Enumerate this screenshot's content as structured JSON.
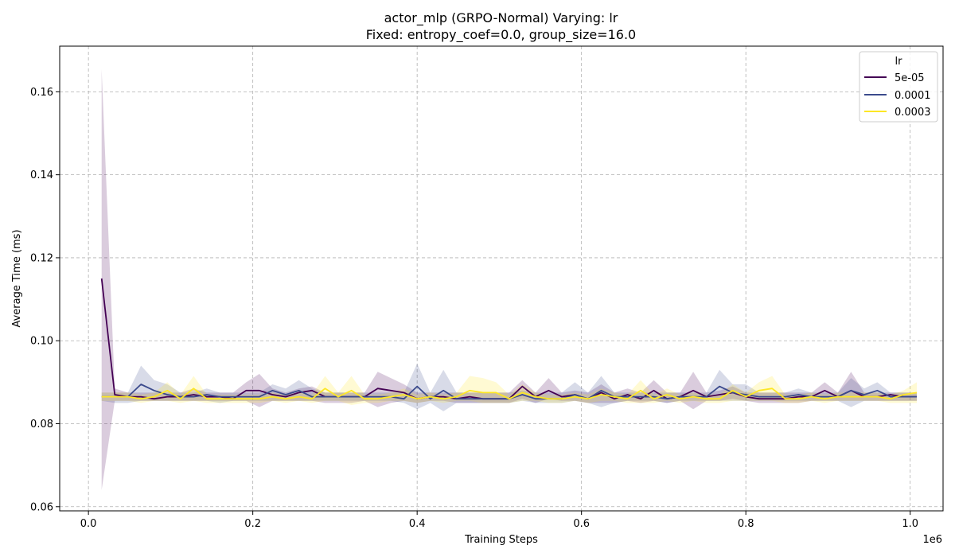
{
  "chart_data": {
    "type": "line",
    "title_line1": "actor_mlp (GRPO-Normal) Varying: lr",
    "title_line2": "Fixed: entropy_coef=0.0, group_size=16.0",
    "xlabel": "Training Steps",
    "ylabel": "Average Time (ms)",
    "x_offset_label": "1e6",
    "xlim": [
      -0.035,
      1.04
    ],
    "ylim": [
      0.059,
      0.171
    ],
    "x_ticks": [
      0.0,
      0.2,
      0.4,
      0.6,
      0.8,
      1.0
    ],
    "x_tick_labels": [
      "0.0",
      "0.2",
      "0.4",
      "0.6",
      "0.8",
      "1.0"
    ],
    "y_ticks": [
      0.06,
      0.08,
      0.1,
      0.12,
      0.14,
      0.16
    ],
    "y_tick_labels": [
      "0.06",
      "0.08",
      "0.10",
      "0.12",
      "0.14",
      "0.16"
    ],
    "grid": true,
    "legend": {
      "title": "lr",
      "placement": "top-right"
    },
    "x": [
      0.016,
      0.032,
      0.048,
      0.064,
      0.08,
      0.096,
      0.112,
      0.128,
      0.144,
      0.16,
      0.176,
      0.192,
      0.208,
      0.224,
      0.24,
      0.256,
      0.272,
      0.288,
      0.304,
      0.32,
      0.336,
      0.352,
      0.368,
      0.384,
      0.4,
      0.416,
      0.432,
      0.448,
      0.464,
      0.48,
      0.496,
      0.512,
      0.528,
      0.544,
      0.56,
      0.576,
      0.592,
      0.608,
      0.624,
      0.64,
      0.656,
      0.672,
      0.688,
      0.704,
      0.72,
      0.736,
      0.752,
      0.768,
      0.784,
      0.8,
      0.816,
      0.832,
      0.848,
      0.864,
      0.88,
      0.896,
      0.912,
      0.928,
      0.944,
      0.96,
      0.976,
      0.992,
      1.008
    ],
    "series": [
      {
        "name": "5e-05",
        "color": "#440154",
        "values": [
          0.115,
          0.087,
          0.0865,
          0.0865,
          0.086,
          0.0865,
          0.0865,
          0.087,
          0.0865,
          0.0865,
          0.086,
          0.088,
          0.088,
          0.087,
          0.0865,
          0.0875,
          0.088,
          0.0865,
          0.0865,
          0.0865,
          0.0865,
          0.0885,
          0.088,
          0.0875,
          0.086,
          0.0865,
          0.0865,
          0.086,
          0.0865,
          0.086,
          0.086,
          0.086,
          0.089,
          0.0865,
          0.088,
          0.0865,
          0.087,
          0.086,
          0.0875,
          0.086,
          0.087,
          0.086,
          0.088,
          0.086,
          0.0865,
          0.088,
          0.0865,
          0.087,
          0.0875,
          0.0865,
          0.086,
          0.086,
          0.086,
          0.0865,
          0.0865,
          0.088,
          0.0865,
          0.088,
          0.0865,
          0.0865,
          0.087,
          0.0865,
          0.0865
        ],
        "lower": [
          0.064,
          0.0855,
          0.0855,
          0.0855,
          0.0855,
          0.0855,
          0.0855,
          0.0855,
          0.0855,
          0.0855,
          0.0855,
          0.0855,
          0.084,
          0.0855,
          0.0855,
          0.0855,
          0.0855,
          0.085,
          0.085,
          0.085,
          0.0855,
          0.084,
          0.085,
          0.0855,
          0.085,
          0.0855,
          0.0855,
          0.085,
          0.085,
          0.085,
          0.085,
          0.085,
          0.086,
          0.085,
          0.086,
          0.0855,
          0.0855,
          0.085,
          0.085,
          0.085,
          0.0855,
          0.085,
          0.0855,
          0.085,
          0.0855,
          0.0835,
          0.0855,
          0.0855,
          0.086,
          0.0855,
          0.085,
          0.085,
          0.085,
          0.085,
          0.0855,
          0.0855,
          0.0855,
          0.0855,
          0.0855,
          0.0855,
          0.0855,
          0.0855,
          0.0855
        ],
        "upper": [
          0.1655,
          0.0885,
          0.0875,
          0.0875,
          0.0875,
          0.0875,
          0.0875,
          0.0885,
          0.0875,
          0.0875,
          0.0875,
          0.09,
          0.092,
          0.0885,
          0.0875,
          0.0885,
          0.089,
          0.0875,
          0.0875,
          0.0875,
          0.0875,
          0.0925,
          0.091,
          0.0895,
          0.0875,
          0.0875,
          0.0875,
          0.0875,
          0.0875,
          0.0875,
          0.0875,
          0.0875,
          0.0905,
          0.0875,
          0.091,
          0.0875,
          0.088,
          0.0875,
          0.0895,
          0.0875,
          0.0885,
          0.0875,
          0.0905,
          0.0875,
          0.0875,
          0.0925,
          0.0875,
          0.088,
          0.089,
          0.0875,
          0.0875,
          0.0875,
          0.0875,
          0.0875,
          0.0875,
          0.09,
          0.0875,
          0.0925,
          0.0875,
          0.0875,
          0.0875,
          0.0875,
          0.0875
        ]
      },
      {
        "name": "0.0001",
        "color": "#3b4a8c",
        "values": [
          0.0865,
          0.0865,
          0.0865,
          0.0895,
          0.088,
          0.087,
          0.0865,
          0.0865,
          0.087,
          0.0865,
          0.0865,
          0.0865,
          0.0865,
          0.088,
          0.087,
          0.088,
          0.0865,
          0.0865,
          0.0865,
          0.0865,
          0.0865,
          0.0865,
          0.0865,
          0.086,
          0.089,
          0.086,
          0.088,
          0.086,
          0.086,
          0.086,
          0.086,
          0.086,
          0.087,
          0.086,
          0.086,
          0.086,
          0.087,
          0.086,
          0.088,
          0.0865,
          0.0865,
          0.0865,
          0.0865,
          0.086,
          0.0865,
          0.0865,
          0.0865,
          0.089,
          0.0875,
          0.087,
          0.0865,
          0.0865,
          0.0865,
          0.087,
          0.0865,
          0.0865,
          0.0865,
          0.088,
          0.087,
          0.088,
          0.0865,
          0.0865,
          0.0865
        ],
        "lower": [
          0.0855,
          0.085,
          0.085,
          0.0855,
          0.0855,
          0.0855,
          0.0855,
          0.0855,
          0.0855,
          0.085,
          0.0855,
          0.0855,
          0.0855,
          0.0855,
          0.0855,
          0.0855,
          0.0855,
          0.0855,
          0.0855,
          0.0855,
          0.0855,
          0.0855,
          0.0855,
          0.085,
          0.0835,
          0.085,
          0.083,
          0.085,
          0.085,
          0.085,
          0.085,
          0.085,
          0.0855,
          0.085,
          0.085,
          0.085,
          0.0855,
          0.085,
          0.084,
          0.085,
          0.0855,
          0.0855,
          0.0855,
          0.085,
          0.0855,
          0.0855,
          0.0855,
          0.0855,
          0.0855,
          0.0855,
          0.0855,
          0.0855,
          0.0855,
          0.0855,
          0.0855,
          0.0855,
          0.0855,
          0.084,
          0.0855,
          0.0855,
          0.0855,
          0.0855,
          0.0855
        ],
        "upper": [
          0.0875,
          0.0875,
          0.0875,
          0.094,
          0.0905,
          0.0895,
          0.0875,
          0.0875,
          0.0885,
          0.0875,
          0.0875,
          0.0875,
          0.0875,
          0.0895,
          0.0885,
          0.0905,
          0.0885,
          0.0875,
          0.0875,
          0.0875,
          0.0875,
          0.0875,
          0.0875,
          0.0875,
          0.0945,
          0.0875,
          0.093,
          0.0875,
          0.0875,
          0.0875,
          0.0875,
          0.0875,
          0.088,
          0.0875,
          0.0875,
          0.0875,
          0.09,
          0.0875,
          0.0915,
          0.0875,
          0.0875,
          0.0875,
          0.0875,
          0.0875,
          0.0875,
          0.0875,
          0.0875,
          0.093,
          0.0895,
          0.0895,
          0.0875,
          0.0875,
          0.0875,
          0.0885,
          0.0875,
          0.0875,
          0.0875,
          0.091,
          0.0885,
          0.09,
          0.0875,
          0.0875,
          0.0875
        ]
      },
      {
        "name": "0.0003",
        "color": "#fde725",
        "values": [
          0.0865,
          0.0865,
          0.0865,
          0.086,
          0.0865,
          0.088,
          0.086,
          0.0885,
          0.086,
          0.086,
          0.086,
          0.086,
          0.086,
          0.0865,
          0.086,
          0.0865,
          0.086,
          0.0885,
          0.0865,
          0.088,
          0.086,
          0.086,
          0.0865,
          0.087,
          0.086,
          0.0865,
          0.086,
          0.0865,
          0.088,
          0.0875,
          0.0875,
          0.086,
          0.0875,
          0.0865,
          0.086,
          0.086,
          0.0865,
          0.086,
          0.087,
          0.0865,
          0.086,
          0.088,
          0.086,
          0.087,
          0.086,
          0.0865,
          0.086,
          0.086,
          0.088,
          0.0865,
          0.088,
          0.0885,
          0.086,
          0.086,
          0.0865,
          0.086,
          0.0865,
          0.0865,
          0.0865,
          0.0865,
          0.086,
          0.087,
          0.0875
        ],
        "lower": [
          0.0855,
          0.0855,
          0.0855,
          0.085,
          0.0855,
          0.0855,
          0.085,
          0.0855,
          0.085,
          0.085,
          0.085,
          0.085,
          0.085,
          0.0855,
          0.085,
          0.0855,
          0.085,
          0.0855,
          0.0855,
          0.0845,
          0.085,
          0.085,
          0.0855,
          0.0855,
          0.085,
          0.0855,
          0.085,
          0.0855,
          0.0855,
          0.085,
          0.085,
          0.085,
          0.0855,
          0.0855,
          0.085,
          0.085,
          0.0855,
          0.085,
          0.0855,
          0.0855,
          0.085,
          0.085,
          0.085,
          0.0855,
          0.085,
          0.0855,
          0.085,
          0.085,
          0.0855,
          0.0855,
          0.0855,
          0.0855,
          0.085,
          0.085,
          0.0855,
          0.085,
          0.0855,
          0.0855,
          0.0855,
          0.0855,
          0.085,
          0.085,
          0.085
        ],
        "upper": [
          0.0875,
          0.0875,
          0.0875,
          0.087,
          0.0875,
          0.09,
          0.087,
          0.0915,
          0.087,
          0.087,
          0.087,
          0.087,
          0.087,
          0.0875,
          0.087,
          0.0875,
          0.087,
          0.0915,
          0.0875,
          0.0915,
          0.087,
          0.087,
          0.0875,
          0.0885,
          0.087,
          0.0875,
          0.087,
          0.0875,
          0.0915,
          0.091,
          0.09,
          0.087,
          0.0895,
          0.0875,
          0.087,
          0.087,
          0.0875,
          0.087,
          0.0885,
          0.0875,
          0.087,
          0.0905,
          0.087,
          0.0885,
          0.087,
          0.0875,
          0.087,
          0.087,
          0.0895,
          0.0875,
          0.09,
          0.0915,
          0.087,
          0.087,
          0.0875,
          0.087,
          0.0875,
          0.0875,
          0.0875,
          0.0875,
          0.087,
          0.088,
          0.09
        ]
      }
    ]
  }
}
